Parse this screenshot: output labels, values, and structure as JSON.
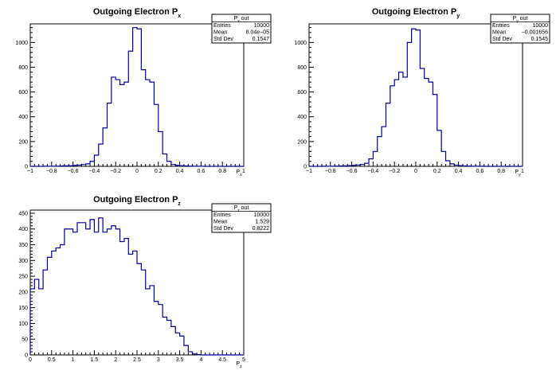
{
  "chart_data": [
    {
      "type": "bar",
      "title": "Outgoing Electron P",
      "title_sub": "x",
      "xlabel": "P",
      "xlabel_sub": "x",
      "ylabel": "",
      "xlim": [
        -1,
        1
      ],
      "ylim": [
        0,
        1150
      ],
      "x_ticks": [
        "−1",
        "−0.8",
        "−0.6",
        "−0.4",
        "−0.2",
        "0",
        "0.2",
        "0.4",
        "0.6",
        "0.8",
        "1"
      ],
      "y_ticks": [
        "0",
        "200",
        "400",
        "600",
        "800",
        "1000"
      ],
      "bin_edges_range": [
        -1,
        1
      ],
      "values": [
        0,
        0,
        0,
        1,
        1,
        1,
        2,
        3,
        4,
        5,
        7,
        10,
        14,
        20,
        40,
        90,
        180,
        310,
        510,
        720,
        700,
        660,
        680,
        930,
        1120,
        1110,
        780,
        700,
        680,
        500,
        280,
        100,
        40,
        15,
        8,
        5,
        3,
        2,
        1,
        1,
        1,
        0,
        0,
        0,
        0,
        0,
        0,
        0,
        0,
        0
      ],
      "stats": {
        "title": "P",
        "title_sub": "x",
        "title_suffix": " out",
        "rows": [
          {
            "label": "Entries",
            "value": "10000"
          },
          {
            "label": "Mean",
            "value": "8.04e−05"
          },
          {
            "label": "Std Dev",
            "value": "0.1547"
          }
        ]
      }
    },
    {
      "type": "bar",
      "title": "Outgoing Electron P",
      "title_sub": "y",
      "xlabel": "P",
      "xlabel_sub": "y",
      "ylabel": "",
      "xlim": [
        -1,
        1
      ],
      "ylim": [
        0,
        1150
      ],
      "x_ticks": [
        "−1",
        "−0.8",
        "−0.6",
        "−0.4",
        "−0.2",
        "0",
        "0.2",
        "0.4",
        "0.6",
        "0.8",
        "1"
      ],
      "y_ticks": [
        "0",
        "200",
        "400",
        "600",
        "800",
        "1000"
      ],
      "bin_edges_range": [
        -1,
        1
      ],
      "values": [
        0,
        0,
        0,
        1,
        1,
        1,
        2,
        3,
        4,
        6,
        8,
        11,
        15,
        25,
        60,
        120,
        240,
        320,
        510,
        650,
        700,
        760,
        720,
        1000,
        1110,
        1100,
        790,
        710,
        680,
        580,
        290,
        120,
        45,
        20,
        10,
        6,
        3,
        2,
        1,
        1,
        1,
        0,
        0,
        0,
        0,
        0,
        0,
        0,
        0,
        0
      ],
      "stats": {
        "title": "P",
        "title_sub": "y",
        "title_suffix": " out",
        "rows": [
          {
            "label": "Entries",
            "value": "10000"
          },
          {
            "label": "Mean",
            "value": "−0.001656"
          },
          {
            "label": "Std Dev",
            "value": "0.1545"
          }
        ]
      }
    },
    {
      "type": "bar",
      "title": "Outgoing Electron P",
      "title_sub": "z",
      "xlabel": "P",
      "xlabel_sub": "z",
      "ylabel": "",
      "xlim": [
        0,
        5
      ],
      "ylim": [
        0,
        460
      ],
      "x_ticks": [
        "0",
        "0.5",
        "1",
        "1.5",
        "2",
        "2.5",
        "3",
        "3.5",
        "4",
        "4.5",
        "5"
      ],
      "y_ticks": [
        "0",
        "50",
        "100",
        "150",
        "200",
        "250",
        "300",
        "350",
        "400",
        "450"
      ],
      "bin_edges_range": [
        0,
        5
      ],
      "values": [
        210,
        240,
        210,
        270,
        310,
        330,
        340,
        350,
        400,
        400,
        390,
        420,
        420,
        400,
        430,
        390,
        435,
        390,
        400,
        410,
        400,
        360,
        370,
        320,
        330,
        290,
        270,
        210,
        220,
        170,
        160,
        120,
        110,
        90,
        70,
        60,
        30,
        10,
        3,
        1,
        0,
        0,
        0,
        0,
        0,
        0,
        0,
        0,
        0,
        0
      ],
      "stats": {
        "title": "P",
        "title_sub": "z",
        "title_suffix": " out",
        "rows": [
          {
            "label": "Entries",
            "value": "10000"
          },
          {
            "label": "Mean",
            "value": "1.529"
          },
          {
            "label": "Std Dev",
            "value": "0.8222"
          }
        ]
      }
    }
  ]
}
